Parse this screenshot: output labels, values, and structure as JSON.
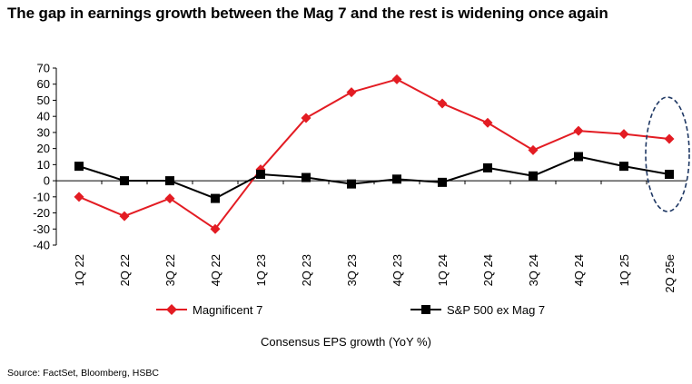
{
  "header": {
    "title": "The gap in earnings growth between the Mag 7 and the rest is widening once again"
  },
  "footer": {
    "source": "Source: FactSet, Bloomberg, HSBC"
  },
  "legend": {
    "series_1": "Magnificent 7",
    "series_2": "S&P 500 ex Mag 7"
  },
  "colors": {
    "series_1": "#e31c23",
    "series_2": "#000000",
    "highlight": "#1f3864"
  },
  "chart_data": {
    "type": "line",
    "title": "The gap in earnings growth between the Mag 7 and the rest is widening once again",
    "xlabel": "Consensus EPS growth (YoY %)",
    "ylabel": "",
    "ylim": [
      -40,
      70
    ],
    "yticks": [
      70,
      60,
      50,
      40,
      30,
      20,
      10,
      0,
      -10,
      -20,
      -30,
      -40
    ],
    "categories": [
      "1Q 22",
      "2Q 22",
      "3Q 22",
      "4Q 22",
      "1Q 23",
      "2Q 23",
      "3Q 23",
      "4Q 23",
      "1Q 24",
      "2Q 24",
      "3Q 24",
      "4Q 24",
      "1Q 25",
      "2Q 25e"
    ],
    "series": [
      {
        "name": "Magnificent 7",
        "marker": "diamond",
        "values": [
          -10,
          -22,
          -11,
          -30,
          7,
          39,
          55,
          63,
          48,
          36,
          19,
          31,
          29,
          26
        ]
      },
      {
        "name": "S&P 500 ex Mag 7",
        "marker": "square",
        "values": [
          9,
          0,
          0,
          -11,
          4,
          2,
          -2,
          1,
          -1,
          8,
          3,
          15,
          9,
          4
        ]
      }
    ],
    "annotation": "dashed ellipse highlighting 2Q 25e",
    "legend_position": "bottom"
  }
}
